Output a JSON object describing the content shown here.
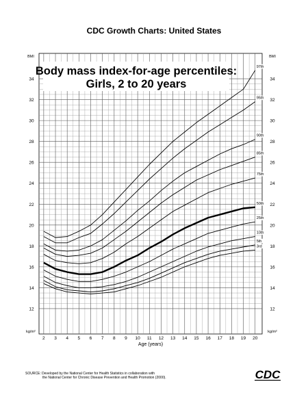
{
  "chart_data": {
    "type": "line",
    "title": "CDC Growth Charts: United States",
    "subtitle": [
      "Body mass index-for-age percentiles:",
      "Girls, 2 to 20 years"
    ],
    "x_label": "Age (years)",
    "y_label_top": "BMI",
    "y_label_bottom": "kg/m²",
    "source": [
      "SOURCE: Developed by the National Center for Health Statistics in collaboration with",
      "the National Center for Chronic Disease Prevention and Health Promotion (2000)."
    ],
    "logo": "CDC",
    "x": [
      2,
      3,
      4,
      5,
      6,
      7,
      8,
      9,
      10,
      11,
      12,
      13,
      14,
      15,
      16,
      17,
      18,
      19,
      20
    ],
    "xlim": [
      1.6,
      20.6
    ],
    "xticks": [
      2,
      3,
      4,
      5,
      6,
      7,
      8,
      9,
      10,
      11,
      12,
      13,
      14,
      15,
      16,
      17,
      18,
      19,
      20
    ],
    "ylim": [
      10,
      36
    ],
    "yticks": [
      12,
      14,
      16,
      18,
      20,
      22,
      24,
      26,
      28,
      30,
      32,
      34
    ],
    "grid": true,
    "series": [
      {
        "name": "3rd",
        "color": "#000000",
        "linewidth": 0.9,
        "values": [
          14.4,
          13.9,
          13.6,
          13.5,
          13.4,
          13.5,
          13.6,
          13.9,
          14.2,
          14.6,
          15.0,
          15.5,
          16.0,
          16.4,
          16.8,
          17.1,
          17.3,
          17.5,
          17.6
        ]
      },
      {
        "name": "5th",
        "color": "#000000",
        "linewidth": 0.9,
        "values": [
          14.7,
          14.1,
          13.8,
          13.7,
          13.6,
          13.7,
          13.9,
          14.2,
          14.5,
          14.9,
          15.4,
          15.9,
          16.4,
          16.8,
          17.2,
          17.5,
          17.7,
          17.9,
          18.1
        ]
      },
      {
        "name": "10th",
        "color": "#000000",
        "linewidth": 0.9,
        "values": [
          15.1,
          14.5,
          14.2,
          14.0,
          14.0,
          14.1,
          14.3,
          14.6,
          15.0,
          15.5,
          16.0,
          16.5,
          17.0,
          17.5,
          17.9,
          18.2,
          18.5,
          18.7,
          18.9
        ]
      },
      {
        "name": "25th",
        "color": "#000000",
        "linewidth": 0.9,
        "values": [
          15.7,
          15.1,
          14.8,
          14.6,
          14.6,
          14.8,
          15.1,
          15.5,
          16.0,
          16.5,
          17.1,
          17.7,
          18.2,
          18.7,
          19.2,
          19.5,
          19.8,
          20.1,
          20.3
        ]
      },
      {
        "name": "50th",
        "color": "#000000",
        "linewidth": 2.4,
        "values": [
          16.4,
          15.8,
          15.5,
          15.3,
          15.3,
          15.5,
          16.0,
          16.6,
          17.1,
          17.8,
          18.4,
          19.1,
          19.7,
          20.2,
          20.7,
          21.0,
          21.3,
          21.6,
          21.7
        ]
      },
      {
        "name": "75th",
        "color": "#000000",
        "linewidth": 0.9,
        "values": [
          17.2,
          16.6,
          16.4,
          16.3,
          16.4,
          16.8,
          17.4,
          18.2,
          18.9,
          19.7,
          20.5,
          21.3,
          21.9,
          22.5,
          23.1,
          23.5,
          23.9,
          24.2,
          24.5
        ]
      },
      {
        "name": "85th",
        "color": "#000000",
        "linewidth": 0.9,
        "values": [
          17.8,
          17.2,
          17.0,
          17.1,
          17.3,
          17.8,
          18.6,
          19.4,
          20.3,
          21.2,
          22.1,
          22.9,
          23.6,
          24.3,
          24.8,
          25.3,
          25.7,
          26.1,
          26.5
        ]
      },
      {
        "name": "90th",
        "color": "#000000",
        "linewidth": 0.9,
        "values": [
          18.2,
          17.6,
          17.5,
          17.6,
          18.0,
          18.6,
          19.5,
          20.4,
          21.4,
          22.3,
          23.3,
          24.2,
          25.0,
          25.6,
          26.2,
          26.8,
          27.3,
          27.7,
          28.2
        ]
      },
      {
        "name": "95th",
        "color": "#000000",
        "linewidth": 0.9,
        "values": [
          18.9,
          18.3,
          18.3,
          18.8,
          19.2,
          20.1,
          21.1,
          22.2,
          23.3,
          24.4,
          25.4,
          26.4,
          27.3,
          28.1,
          28.9,
          29.6,
          30.3,
          31.0,
          31.8
        ]
      },
      {
        "name": "97th",
        "color": "#000000",
        "linewidth": 0.9,
        "values": [
          19.4,
          18.8,
          18.9,
          19.4,
          20.0,
          21.0,
          22.2,
          23.4,
          24.6,
          25.8,
          26.9,
          28.0,
          28.9,
          29.8,
          30.6,
          31.4,
          32.2,
          33.0,
          34.8
        ]
      }
    ]
  }
}
